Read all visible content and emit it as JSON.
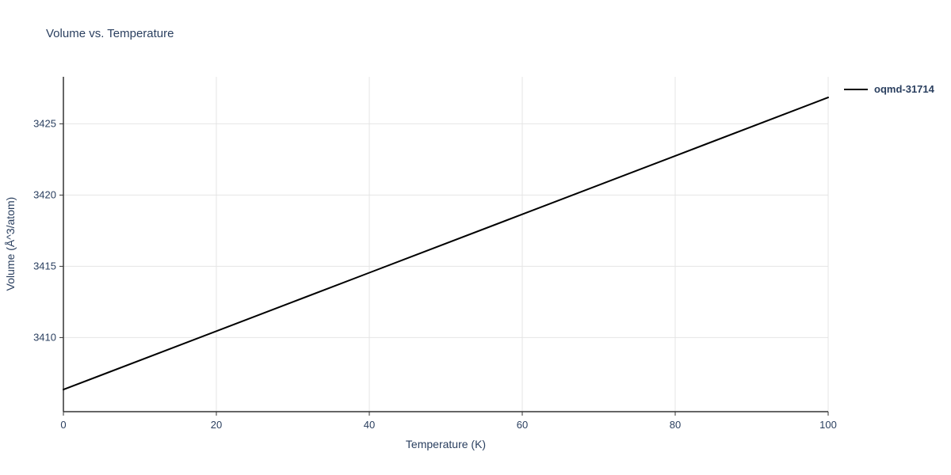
{
  "page": {
    "background": "#ffffff"
  },
  "chart_data": {
    "type": "line",
    "title": "Volume vs. Temperature",
    "xlabel": "Temperature (K)",
    "ylabel": "Volume (Å^3/atom)",
    "xlim": [
      0,
      100
    ],
    "ylim": [
      3404.8,
      3428.3
    ],
    "xticks": [
      0,
      20,
      40,
      60,
      80,
      100
    ],
    "yticks": [
      3410,
      3415,
      3420,
      3425
    ],
    "grid": true,
    "legend_position": "top-right-outside",
    "series": [
      {
        "name": "oqmd-31714",
        "color": "#000000",
        "width": 2,
        "x": [
          0,
          20,
          40,
          60,
          80,
          100
        ],
        "y": [
          3406.35,
          3410.45,
          3414.55,
          3418.65,
          3422.75,
          3426.85
        ]
      }
    ],
    "colors": {
      "text": "#2a3f5f",
      "grid": "#e5e5e5",
      "axis": "#333333"
    }
  }
}
